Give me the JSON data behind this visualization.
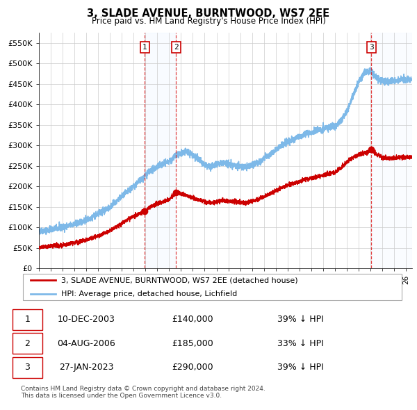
{
  "title": "3, SLADE AVENUE, BURNTWOOD, WS7 2EE",
  "subtitle": "Price paid vs. HM Land Registry's House Price Index (HPI)",
  "ylim": [
    0,
    575000
  ],
  "yticks": [
    0,
    50000,
    100000,
    150000,
    200000,
    250000,
    300000,
    350000,
    400000,
    450000,
    500000,
    550000
  ],
  "ytick_labels": [
    "£0",
    "£50K",
    "£100K",
    "£150K",
    "£200K",
    "£250K",
    "£300K",
    "£350K",
    "£400K",
    "£450K",
    "£500K",
    "£550K"
  ],
  "hpi_color": "#7eb9e8",
  "sale_color": "#cc0000",
  "background_color": "#ffffff",
  "grid_color": "#cccccc",
  "sale_dates_num": [
    2003.94,
    2006.59,
    2023.07
  ],
  "sale_prices": [
    140000,
    185000,
    290000
  ],
  "sale_labels": [
    "1",
    "2",
    "3"
  ],
  "shade_color": "#ddeeff",
  "legend_items": [
    "3, SLADE AVENUE, BURNTWOOD, WS7 2EE (detached house)",
    "HPI: Average price, detached house, Lichfield"
  ],
  "table_data": [
    [
      "1",
      "10-DEC-2003",
      "£140,000",
      "39% ↓ HPI"
    ],
    [
      "2",
      "04-AUG-2006",
      "£185,000",
      "33% ↓ HPI"
    ],
    [
      "3",
      "27-JAN-2023",
      "£290,000",
      "39% ↓ HPI"
    ]
  ],
  "footnote": "Contains HM Land Registry data © Crown copyright and database right 2024.\nThis data is licensed under the Open Government Licence v3.0.",
  "xmin": 1995.0,
  "xmax": 2026.5
}
